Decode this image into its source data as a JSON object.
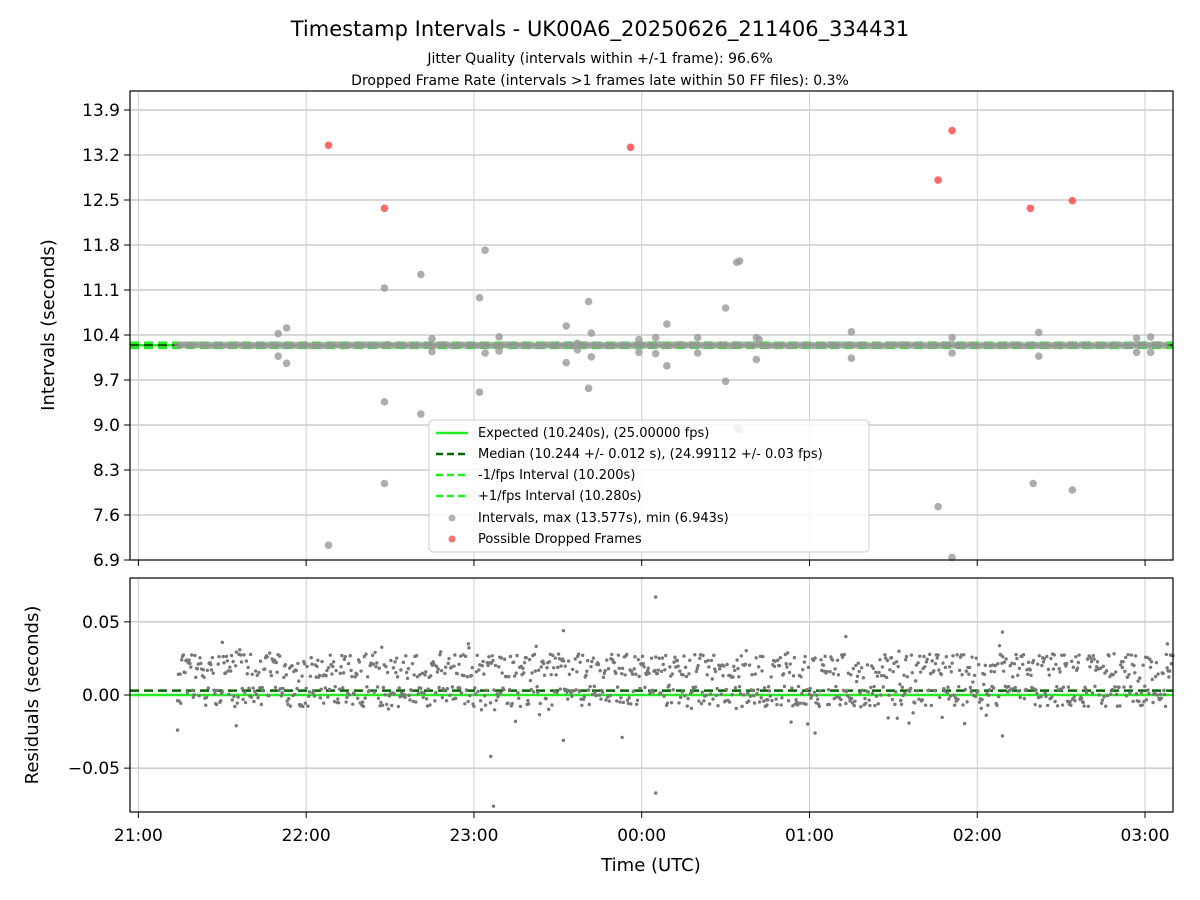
{
  "header": {
    "title": "Timestamp Intervals - UK00A6_20250626_211406_334431",
    "subtitle1": "Jitter Quality (intervals within +/-1 frame): 96.6%",
    "subtitle2": "Dropped Frame Rate (intervals >1 frames late within 50 FF files): 0.3%"
  },
  "colors": {
    "expected": "#22ee22",
    "median": "#006400",
    "fps_bounds": "#22ee22",
    "intervals": "#999999",
    "dropped": "#ff4444",
    "residuals": "#777777"
  },
  "chart_data": [
    {
      "type": "scatter",
      "panel": "top",
      "ylabel": "Intervals (seconds)",
      "xlabel": "",
      "xlim": [
        "20:57",
        "03:10"
      ],
      "ylim": [
        6.9,
        13.9
      ],
      "yticks": [
        "6.9",
        "7.6",
        "8.3",
        "9.0",
        "9.7",
        "10.4",
        "11.1",
        "11.8",
        "12.5",
        "13.2",
        "13.9"
      ],
      "xticks": [
        "21:00",
        "22:00",
        "23:00",
        "00:00",
        "01:00",
        "02:00",
        "03:00"
      ],
      "grid": true,
      "legend_position": "lower center",
      "lines": [
        {
          "name": "Expected (10.240s), (25.00000 fps)",
          "y": 10.24,
          "style": "solid",
          "color": "#22ee22"
        },
        {
          "name": "Median (10.244 +/- 0.012 s), (24.99112 +/- 0.03 fps)",
          "y": 10.244,
          "style": "dashed",
          "color": "#006400"
        },
        {
          "name": "-1/fps Interval (10.200s)",
          "y": 10.2,
          "style": "dashed",
          "color": "#22ee22"
        },
        {
          "name": "+1/fps Interval (10.280s)",
          "y": 10.28,
          "style": "dashed",
          "color": "#22ee22"
        }
      ],
      "series": [
        {
          "name": "Intervals, max (13.577s), min (6.943s)",
          "color": "#999999",
          "baseline": 10.24,
          "baseline_range": [
            "21:14",
            "03:08"
          ],
          "points": [
            [
              "21:50",
              10.42
            ],
            [
              "21:50",
              10.07
            ],
            [
              "21:53",
              10.51
            ],
            [
              "21:53",
              9.96
            ],
            [
              "22:08",
              7.13
            ],
            [
              "22:28",
              11.13
            ],
            [
              "22:28",
              9.36
            ],
            [
              "22:28",
              8.09
            ],
            [
              "22:41",
              11.34
            ],
            [
              "22:41",
              9.17
            ],
            [
              "22:45",
              10.34
            ],
            [
              "22:45",
              10.14
            ],
            [
              "23:02",
              10.98
            ],
            [
              "23:02",
              9.51
            ],
            [
              "23:04",
              11.72
            ],
            [
              "23:04",
              8.88
            ],
            [
              "23:04",
              10.12
            ],
            [
              "23:09",
              10.37
            ],
            [
              "23:09",
              10.15
            ],
            [
              "23:33",
              10.54
            ],
            [
              "23:33",
              9.97
            ],
            [
              "23:37",
              10.27
            ],
            [
              "23:37",
              10.17
            ],
            [
              "23:41",
              10.92
            ],
            [
              "23:41",
              9.57
            ],
            [
              "23:42",
              10.43
            ],
            [
              "23:42",
              10.06
            ],
            [
              "23:59",
              10.33
            ],
            [
              "23:59",
              10.13
            ],
            [
              "00:05",
              10.36
            ],
            [
              "00:05",
              10.11
            ],
            [
              "00:09",
              10.57
            ],
            [
              "00:09",
              9.92
            ],
            [
              "00:20",
              10.36
            ],
            [
              "00:20",
              10.12
            ],
            [
              "00:30",
              10.82
            ],
            [
              "00:30",
              9.68
            ],
            [
              "00:34",
              11.53
            ],
            [
              "00:35",
              11.55
            ],
            [
              "00:34",
              8.96
            ],
            [
              "00:35",
              8.92
            ],
            [
              "00:41",
              10.36
            ],
            [
              "00:41",
              10.02
            ],
            [
              "00:42",
              10.33
            ],
            [
              "01:15",
              10.45
            ],
            [
              "01:15",
              10.04
            ],
            [
              "01:46",
              7.73
            ],
            [
              "01:51",
              10.36
            ],
            [
              "01:51",
              10.12
            ],
            [
              "01:51",
              6.94
            ],
            [
              "02:20",
              8.09
            ],
            [
              "02:22",
              10.44
            ],
            [
              "02:22",
              10.07
            ],
            [
              "02:34",
              7.99
            ],
            [
              "02:57",
              10.35
            ],
            [
              "02:57",
              10.13
            ],
            [
              "03:02",
              10.37
            ],
            [
              "03:02",
              10.13
            ]
          ]
        },
        {
          "name": "Possible Dropped Frames",
          "color": "#ff4444",
          "points": [
            [
              "22:08",
              13.35
            ],
            [
              "22:28",
              12.37
            ],
            [
              "23:56",
              13.32
            ],
            [
              "01:46",
              12.81
            ],
            [
              "01:51",
              13.58
            ],
            [
              "02:19",
              12.37
            ],
            [
              "02:34",
              12.49
            ]
          ]
        }
      ]
    },
    {
      "type": "scatter",
      "panel": "bottom",
      "ylabel": "Residuals (seconds)",
      "xlabel": "Time (UTC)",
      "xlim": [
        "20:57",
        "03:10"
      ],
      "ylim": [
        -0.08,
        0.08
      ],
      "yticks": [
        "−0.05",
        "0.00",
        "0.05"
      ],
      "xticks": [
        "21:00",
        "22:00",
        "23:00",
        "00:00",
        "01:00",
        "02:00",
        "03:00"
      ],
      "grid": true,
      "lines": [
        {
          "name": "Expected",
          "y": 0.0,
          "style": "solid",
          "color": "#22ee22"
        },
        {
          "name": "Median",
          "y": 0.003,
          "style": "dashed",
          "color": "#006400"
        }
      ],
      "series": [
        {
          "name": "Residuals",
          "color": "#777777",
          "x_range": [
            "21:14",
            "03:10"
          ],
          "count": 1200,
          "band_upper": [
            0.012,
            0.028
          ],
          "band_lower": [
            -0.008,
            0.006
          ],
          "outliers": [
            [
              "21:14",
              -0.024
            ],
            [
              "21:30",
              0.036
            ],
            [
              "21:35",
              -0.021
            ],
            [
              "22:58",
              0.035
            ],
            [
              "23:06",
              -0.042
            ],
            [
              "23:07",
              -0.076
            ],
            [
              "23:32",
              0.044
            ],
            [
              "23:32",
              -0.031
            ],
            [
              "23:53",
              -0.029
            ],
            [
              "00:05",
              0.067
            ],
            [
              "00:05",
              -0.067
            ],
            [
              "01:02",
              -0.026
            ],
            [
              "01:13",
              0.04
            ],
            [
              "02:09",
              0.043
            ],
            [
              "02:09",
              -0.028
            ],
            [
              "03:08",
              0.035
            ]
          ]
        }
      ]
    }
  ]
}
